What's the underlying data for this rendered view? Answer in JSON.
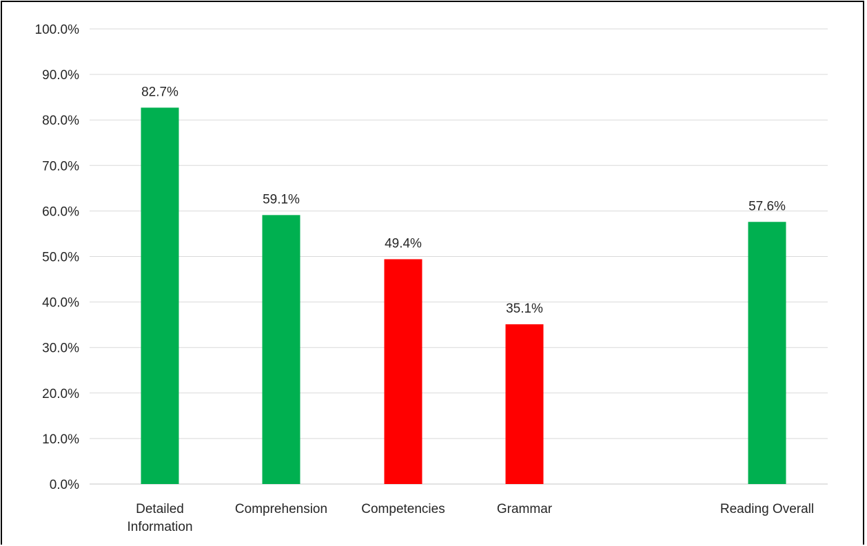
{
  "chart_data": {
    "type": "bar",
    "title": "",
    "xlabel": "",
    "ylabel": "",
    "categories": [
      [
        "Detailed",
        "Information"
      ],
      [
        "Comprehension"
      ],
      [
        "Competencies"
      ],
      [
        "Grammar"
      ],
      [
        "Reading Overall"
      ]
    ],
    "values": [
      82.7,
      59.1,
      49.4,
      35.1,
      57.6
    ],
    "data_labels": [
      "82.7%",
      "59.1%",
      "49.4%",
      "35.1%",
      "57.6%"
    ],
    "bar_colors": [
      "#00b050",
      "#00b050",
      "#ff0000",
      "#ff0000",
      "#00b050"
    ],
    "ylim": [
      0,
      100
    ],
    "yticks": [
      0,
      10,
      20,
      30,
      40,
      50,
      60,
      70,
      80,
      90,
      100
    ],
    "ytick_labels": [
      "0.0%",
      "10.0%",
      "20.0%",
      "30.0%",
      "40.0%",
      "50.0%",
      "60.0%",
      "70.0%",
      "80.0%",
      "90.0%",
      "100.0%"
    ],
    "grid": true,
    "legend": "none"
  }
}
